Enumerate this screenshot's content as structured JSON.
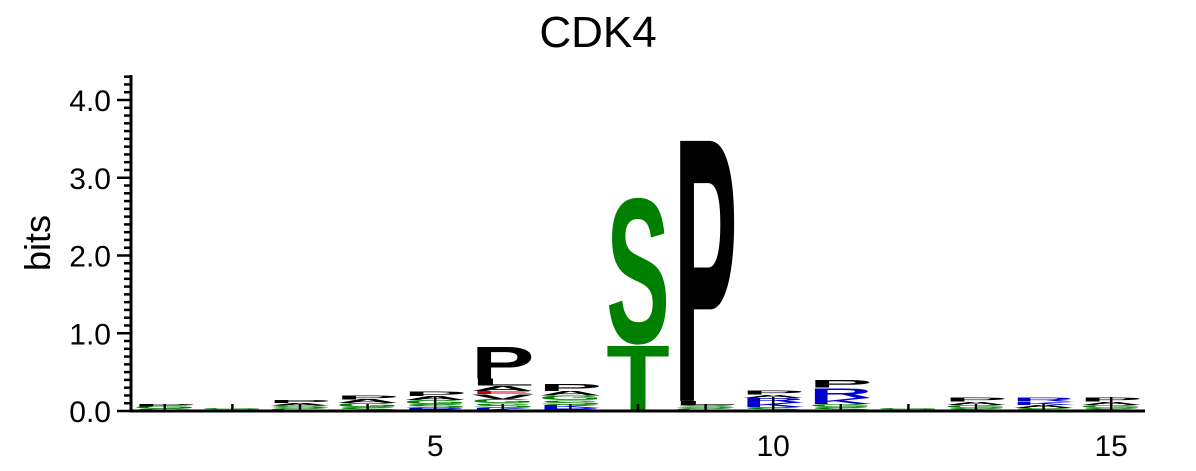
{
  "chart_data": {
    "type": "sequence-logo",
    "title": "CDK4",
    "ylabel": "bits",
    "xlabel": "",
    "ylim": [
      0,
      4.3
    ],
    "y_ticks": [
      {
        "value": 0.0,
        "label": "0.0"
      },
      {
        "value": 1.0,
        "label": "1.0"
      },
      {
        "value": 2.0,
        "label": "2.0"
      },
      {
        "value": 3.0,
        "label": "3.0"
      },
      {
        "value": 4.0,
        "label": "4.0"
      }
    ],
    "x_ticks": [
      {
        "value": 5,
        "label": "5"
      },
      {
        "value": 10,
        "label": "10"
      },
      {
        "value": 15,
        "label": "15"
      }
    ],
    "x_range": [
      0.5,
      15.5
    ],
    "colors": {
      "polar": "#008000",
      "basic": "#0000cc",
      "hydrophobic": "#000000",
      "acidic": "#cc0000",
      "neutral": "#800080"
    },
    "positions": [
      {
        "pos": 1,
        "letters": [
          {
            "aa": "S",
            "height": 0.03,
            "class": "polar"
          },
          {
            "aa": "G",
            "height": 0.03,
            "class": "polar"
          },
          {
            "aa": "P",
            "height": 0.03,
            "class": "hydrophobic"
          }
        ]
      },
      {
        "pos": 2,
        "letters": [
          {
            "aa": "S",
            "height": 0.02,
            "class": "polar"
          },
          {
            "aa": "G",
            "height": 0.02,
            "class": "polar"
          }
        ]
      },
      {
        "pos": 3,
        "letters": [
          {
            "aa": "G",
            "height": 0.04,
            "class": "polar"
          },
          {
            "aa": "S",
            "height": 0.03,
            "class": "polar"
          },
          {
            "aa": "A",
            "height": 0.03,
            "class": "hydrophobic"
          },
          {
            "aa": "P",
            "height": 0.04,
            "class": "hydrophobic"
          }
        ]
      },
      {
        "pos": 4,
        "letters": [
          {
            "aa": "S",
            "height": 0.05,
            "class": "polar"
          },
          {
            "aa": "G",
            "height": 0.05,
            "class": "polar"
          },
          {
            "aa": "A",
            "height": 0.05,
            "class": "hydrophobic"
          },
          {
            "aa": "P",
            "height": 0.05,
            "class": "hydrophobic"
          }
        ]
      },
      {
        "pos": 5,
        "letters": [
          {
            "aa": "R",
            "height": 0.04,
            "class": "basic"
          },
          {
            "aa": "S",
            "height": 0.05,
            "class": "polar"
          },
          {
            "aa": "G",
            "height": 0.05,
            "class": "polar"
          },
          {
            "aa": "A",
            "height": 0.05,
            "class": "hydrophobic"
          },
          {
            "aa": "P",
            "height": 0.06,
            "class": "hydrophobic"
          }
        ]
      },
      {
        "pos": 6,
        "letters": [
          {
            "aa": "K",
            "height": 0.04,
            "class": "basic"
          },
          {
            "aa": "S",
            "height": 0.06,
            "class": "polar"
          },
          {
            "aa": "G",
            "height": 0.05,
            "class": "polar"
          },
          {
            "aa": "V",
            "height": 0.07,
            "class": "hydrophobic"
          },
          {
            "aa": "E",
            "height": 0.04,
            "class": "acidic"
          },
          {
            "aa": "A",
            "height": 0.07,
            "class": "hydrophobic"
          },
          {
            "aa": "L",
            "height": 0.09,
            "class": "hydrophobic"
          },
          {
            "aa": "P",
            "height": 0.42,
            "class": "hydrophobic"
          }
        ]
      },
      {
        "pos": 7,
        "letters": [
          {
            "aa": "R",
            "height": 0.04,
            "class": "basic"
          },
          {
            "aa": "K",
            "height": 0.04,
            "class": "basic"
          },
          {
            "aa": "S",
            "height": 0.06,
            "class": "polar"
          },
          {
            "aa": "G",
            "height": 0.06,
            "class": "polar"
          },
          {
            "aa": "A",
            "height": 0.06,
            "class": "hydrophobic"
          },
          {
            "aa": "P",
            "height": 0.09,
            "class": "hydrophobic"
          }
        ]
      },
      {
        "pos": 8,
        "letters": [
          {
            "aa": "T",
            "height": 0.88,
            "class": "polar"
          },
          {
            "aa": "S",
            "height": 1.92,
            "class": "polar"
          }
        ]
      },
      {
        "pos": 9,
        "letters": [
          {
            "aa": "G",
            "height": 0.04,
            "class": "polar"
          },
          {
            "aa": "S",
            "height": 0.04,
            "class": "polar"
          },
          {
            "aa": "L",
            "height": 0.05,
            "class": "hydrophobic"
          },
          {
            "aa": "P",
            "height": 3.5,
            "class": "hydrophobic"
          }
        ]
      },
      {
        "pos": 10,
        "letters": [
          {
            "aa": "S",
            "height": 0.05,
            "class": "polar"
          },
          {
            "aa": "K",
            "height": 0.06,
            "class": "basic"
          },
          {
            "aa": "R",
            "height": 0.06,
            "class": "basic"
          },
          {
            "aa": "A",
            "height": 0.04,
            "class": "hydrophobic"
          },
          {
            "aa": "P",
            "height": 0.05,
            "class": "hydrophobic"
          }
        ]
      },
      {
        "pos": 11,
        "letters": [
          {
            "aa": "S",
            "height": 0.05,
            "class": "polar"
          },
          {
            "aa": "G",
            "height": 0.04,
            "class": "polar"
          },
          {
            "aa": "K",
            "height": 0.08,
            "class": "basic"
          },
          {
            "aa": "R",
            "height": 0.13,
            "class": "basic"
          },
          {
            "aa": "P",
            "height": 0.1,
            "class": "hydrophobic"
          }
        ]
      },
      {
        "pos": 12,
        "letters": [
          {
            "aa": "S",
            "height": 0.02,
            "class": "polar"
          },
          {
            "aa": "G",
            "height": 0.02,
            "class": "polar"
          }
        ]
      },
      {
        "pos": 13,
        "letters": [
          {
            "aa": "S",
            "height": 0.04,
            "class": "polar"
          },
          {
            "aa": "G",
            "height": 0.04,
            "class": "polar"
          },
          {
            "aa": "A",
            "height": 0.04,
            "class": "hydrophobic"
          },
          {
            "aa": "P",
            "height": 0.05,
            "class": "hydrophobic"
          }
        ]
      },
      {
        "pos": 14,
        "letters": [
          {
            "aa": "S",
            "height": 0.04,
            "class": "polar"
          },
          {
            "aa": "A",
            "height": 0.04,
            "class": "hydrophobic"
          },
          {
            "aa": "K",
            "height": 0.04,
            "class": "basic"
          },
          {
            "aa": "R",
            "height": 0.05,
            "class": "basic"
          }
        ]
      },
      {
        "pos": 15,
        "letters": [
          {
            "aa": "S",
            "height": 0.04,
            "class": "polar"
          },
          {
            "aa": "G",
            "height": 0.04,
            "class": "polar"
          },
          {
            "aa": "A",
            "height": 0.04,
            "class": "hydrophobic"
          },
          {
            "aa": "P",
            "height": 0.05,
            "class": "hydrophobic"
          }
        ]
      }
    ]
  }
}
